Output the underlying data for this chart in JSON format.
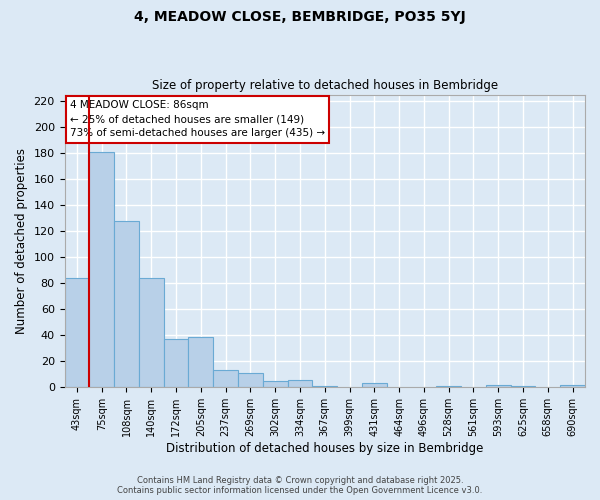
{
  "title": "4, MEADOW CLOSE, BEMBRIDGE, PO35 5YJ",
  "subtitle": "Size of property relative to detached houses in Bembridge",
  "xlabel": "Distribution of detached houses by size in Bembridge",
  "ylabel": "Number of detached properties",
  "bar_labels": [
    "43sqm",
    "75sqm",
    "108sqm",
    "140sqm",
    "172sqm",
    "205sqm",
    "237sqm",
    "269sqm",
    "302sqm",
    "334sqm",
    "367sqm",
    "399sqm",
    "431sqm",
    "464sqm",
    "496sqm",
    "528sqm",
    "561sqm",
    "593sqm",
    "625sqm",
    "658sqm",
    "690sqm"
  ],
  "bar_values": [
    84,
    181,
    128,
    84,
    37,
    39,
    13,
    11,
    5,
    6,
    1,
    0,
    3,
    0,
    0,
    1,
    0,
    2,
    1,
    0,
    2
  ],
  "bar_color": "#b8d0e8",
  "bar_edge_color": "#6aaad4",
  "background_color": "#dce9f5",
  "grid_color": "#ffffff",
  "vline_color": "#cc0000",
  "vline_index": 1,
  "ylim": [
    0,
    225
  ],
  "yticks": [
    0,
    20,
    40,
    60,
    80,
    100,
    120,
    140,
    160,
    180,
    200,
    220
  ],
  "annotation_title": "4 MEADOW CLOSE: 86sqm",
  "annotation_line1": "← 25% of detached houses are smaller (149)",
  "annotation_line2": "73% of semi-detached houses are larger (435) →",
  "annotation_box_color": "#ffffff",
  "annotation_box_edge": "#cc0000",
  "footer1": "Contains HM Land Registry data © Crown copyright and database right 2025.",
  "footer2": "Contains public sector information licensed under the Open Government Licence v3.0."
}
